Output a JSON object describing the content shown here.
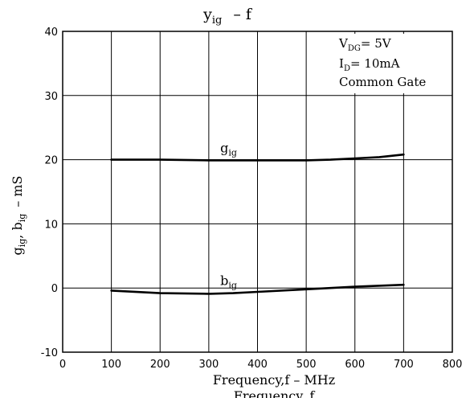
{
  "chart_data": {
    "type": "line",
    "title_main": "y",
    "title_sub": "ig",
    "title_rest": "–   f",
    "xlabel": "Frequency,f – MHz",
    "footer": "Frequency, f",
    "ylabel_parts": {
      "g": "g",
      "g_sub": "ig",
      "sep": ", ",
      "b": "b",
      "b_sub": "ig",
      "units": "–   mS"
    },
    "xlim": [
      0,
      800
    ],
    "ylim": [
      -10,
      40
    ],
    "grid": true,
    "x_ticks": [
      "0",
      "100",
      "200",
      "300",
      "400",
      "500",
      "600",
      "700",
      "800"
    ],
    "x_tick_values": [
      0,
      100,
      200,
      300,
      400,
      500,
      600,
      700,
      800
    ],
    "y_ticks": [
      "-10",
      "0",
      "10",
      "20",
      "30",
      "40"
    ],
    "y_tick_values": [
      -10,
      0,
      10,
      20,
      30,
      40
    ],
    "legend_box": {
      "placement": "top-right",
      "lines": [
        {
          "main": "V",
          "sub": "DG",
          "rest": "= 5V"
        },
        {
          "main": "I",
          "sub": "D",
          "rest": "= 10mA"
        },
        {
          "main": "Common Gate",
          "sub": "",
          "rest": ""
        }
      ]
    },
    "series": [
      {
        "name": "g",
        "name_sub": "ig",
        "x": [
          100,
          200,
          300,
          400,
          500,
          550,
          600,
          650,
          700
        ],
        "y": [
          20.0,
          20.0,
          19.9,
          19.9,
          19.9,
          20.0,
          20.2,
          20.4,
          20.8
        ]
      },
      {
        "name": "b",
        "name_sub": "ig",
        "x": [
          100,
          200,
          300,
          350,
          400,
          500,
          600,
          700
        ],
        "y": [
          -0.4,
          -0.8,
          -0.9,
          -0.8,
          -0.6,
          -0.2,
          0.2,
          0.5
        ]
      }
    ]
  }
}
